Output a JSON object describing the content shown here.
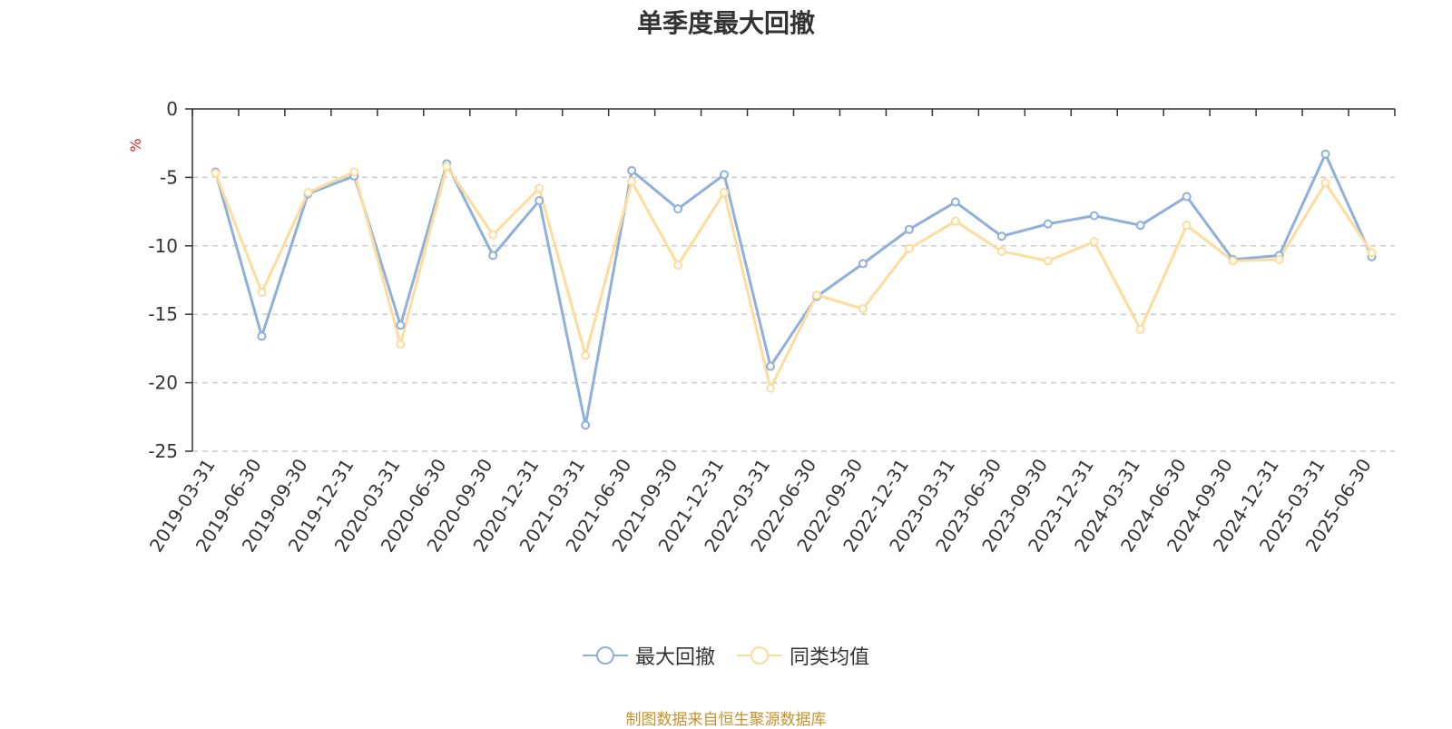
{
  "chart_data": {
    "type": "line",
    "title": "单季度最大回撤",
    "ylabel": "%",
    "ylim": [
      -25,
      0
    ],
    "yticks": [
      0,
      -5,
      -10,
      -15,
      -20,
      -25
    ],
    "grid": true,
    "legend_position": "bottom",
    "categories": [
      "2019-03-31",
      "2019-06-30",
      "2019-09-30",
      "2019-12-31",
      "2020-03-31",
      "2020-06-30",
      "2020-09-30",
      "2020-12-31",
      "2021-03-31",
      "2021-06-30",
      "2021-09-30",
      "2021-12-31",
      "2022-03-31",
      "2022-06-30",
      "2022-09-30",
      "2022-12-31",
      "2023-03-31",
      "2023-06-30",
      "2023-09-30",
      "2023-12-31",
      "2024-03-31",
      "2024-06-30",
      "2024-09-30",
      "2024-12-31",
      "2025-03-31",
      "2025-06-30"
    ],
    "series": [
      {
        "name": "最大回撤",
        "color": "#8fb0dc",
        "values": [
          -4.6,
          -16.6,
          -6.2,
          -4.9,
          -15.8,
          -4.0,
          -10.7,
          -6.7,
          -23.1,
          -4.5,
          -7.3,
          -4.8,
          -18.8,
          -13.7,
          -11.3,
          -8.8,
          -6.8,
          -9.3,
          -8.4,
          -7.8,
          -8.5,
          -6.4,
          -11.0,
          -10.7,
          -3.3,
          -10.8
        ]
      },
      {
        "name": "同类均值",
        "color": "#fddc9c",
        "values": [
          -4.7,
          -13.4,
          -6.1,
          -4.6,
          -17.2,
          -4.2,
          -9.2,
          -5.8,
          -18.0,
          -5.3,
          -11.4,
          -6.1,
          -20.4,
          -13.6,
          -14.6,
          -10.2,
          -8.2,
          -10.4,
          -11.1,
          -9.7,
          -16.1,
          -8.5,
          -11.1,
          -11.0,
          -5.4,
          -10.5
        ]
      }
    ],
    "source": "制图数据来自恒生聚源数据库"
  }
}
